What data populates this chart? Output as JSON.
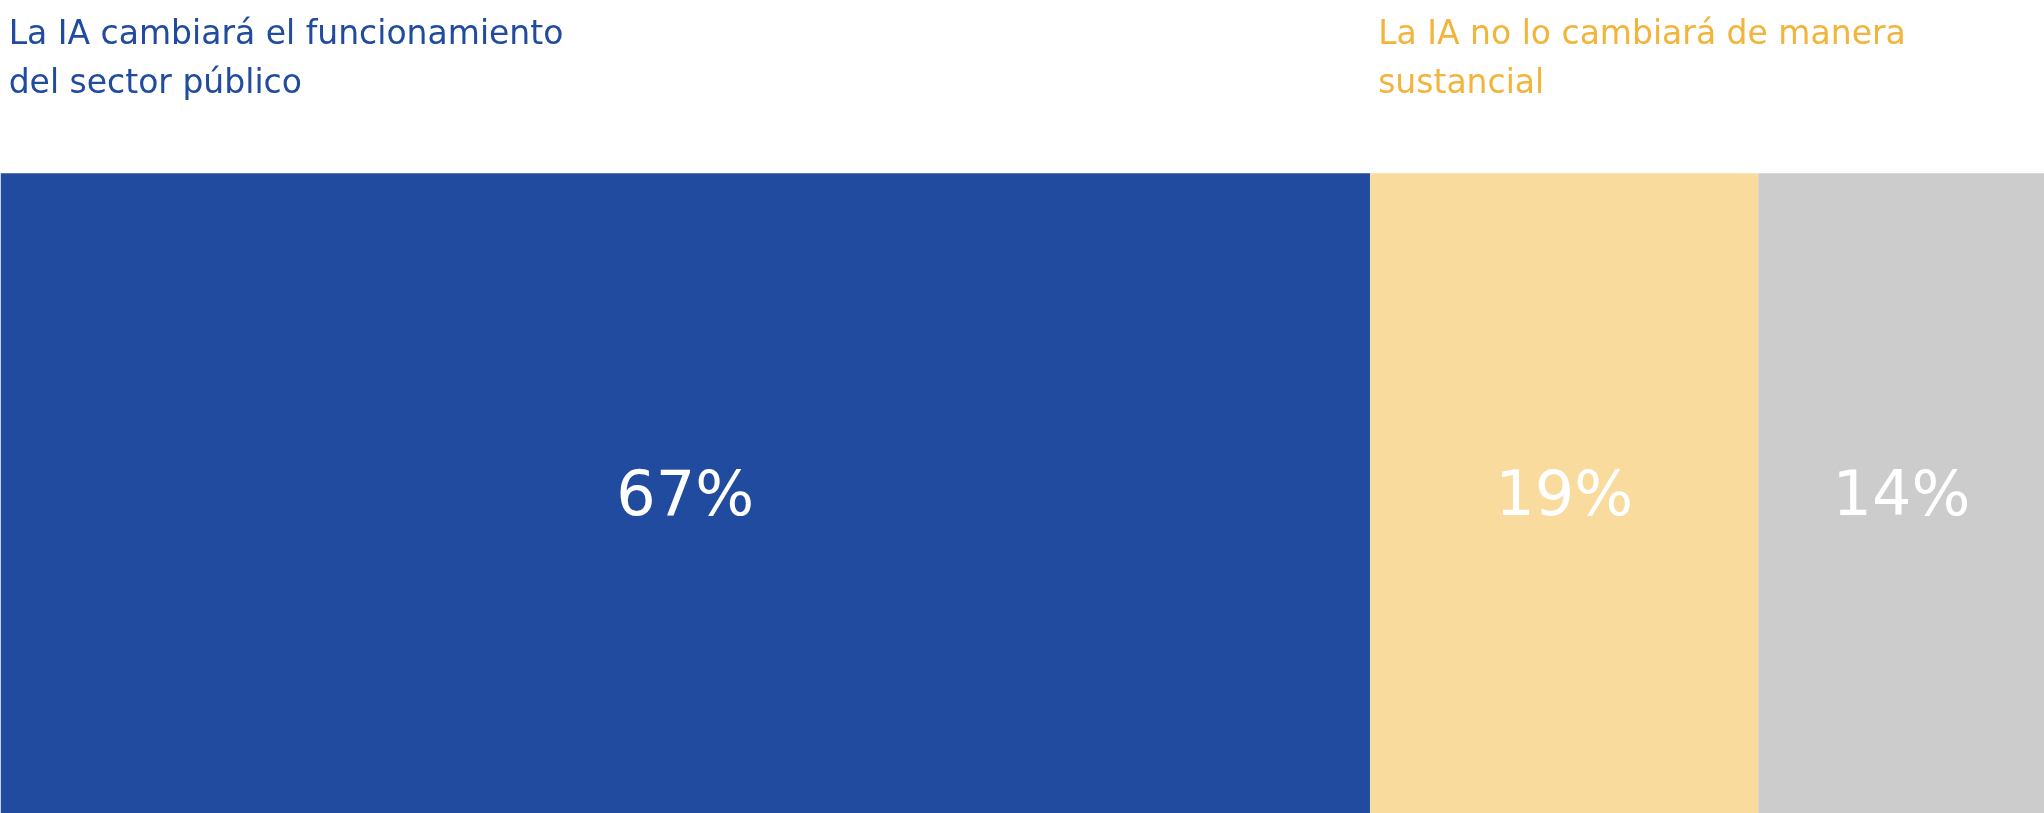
{
  "chart_data": {
    "type": "bar",
    "orientation": "horizontal",
    "stacked": true,
    "categories": [
      null
    ],
    "series": [
      {
        "name": "La IA cambiará el funcionamiento del sector público",
        "color": "#214b9f",
        "values": [
          67
        ],
        "value_labels": [
          "67%"
        ]
      },
      {
        "name": "La IA no lo cambiará de manera sustancial",
        "color": "#f8db9d",
        "values": [
          19
        ],
        "value_labels": [
          "19%"
        ]
      },
      {
        "color": "#cccccc",
        "values": [
          14
        ],
        "value_labels": [
          "14%"
        ]
      }
    ],
    "grid": false
  }
}
